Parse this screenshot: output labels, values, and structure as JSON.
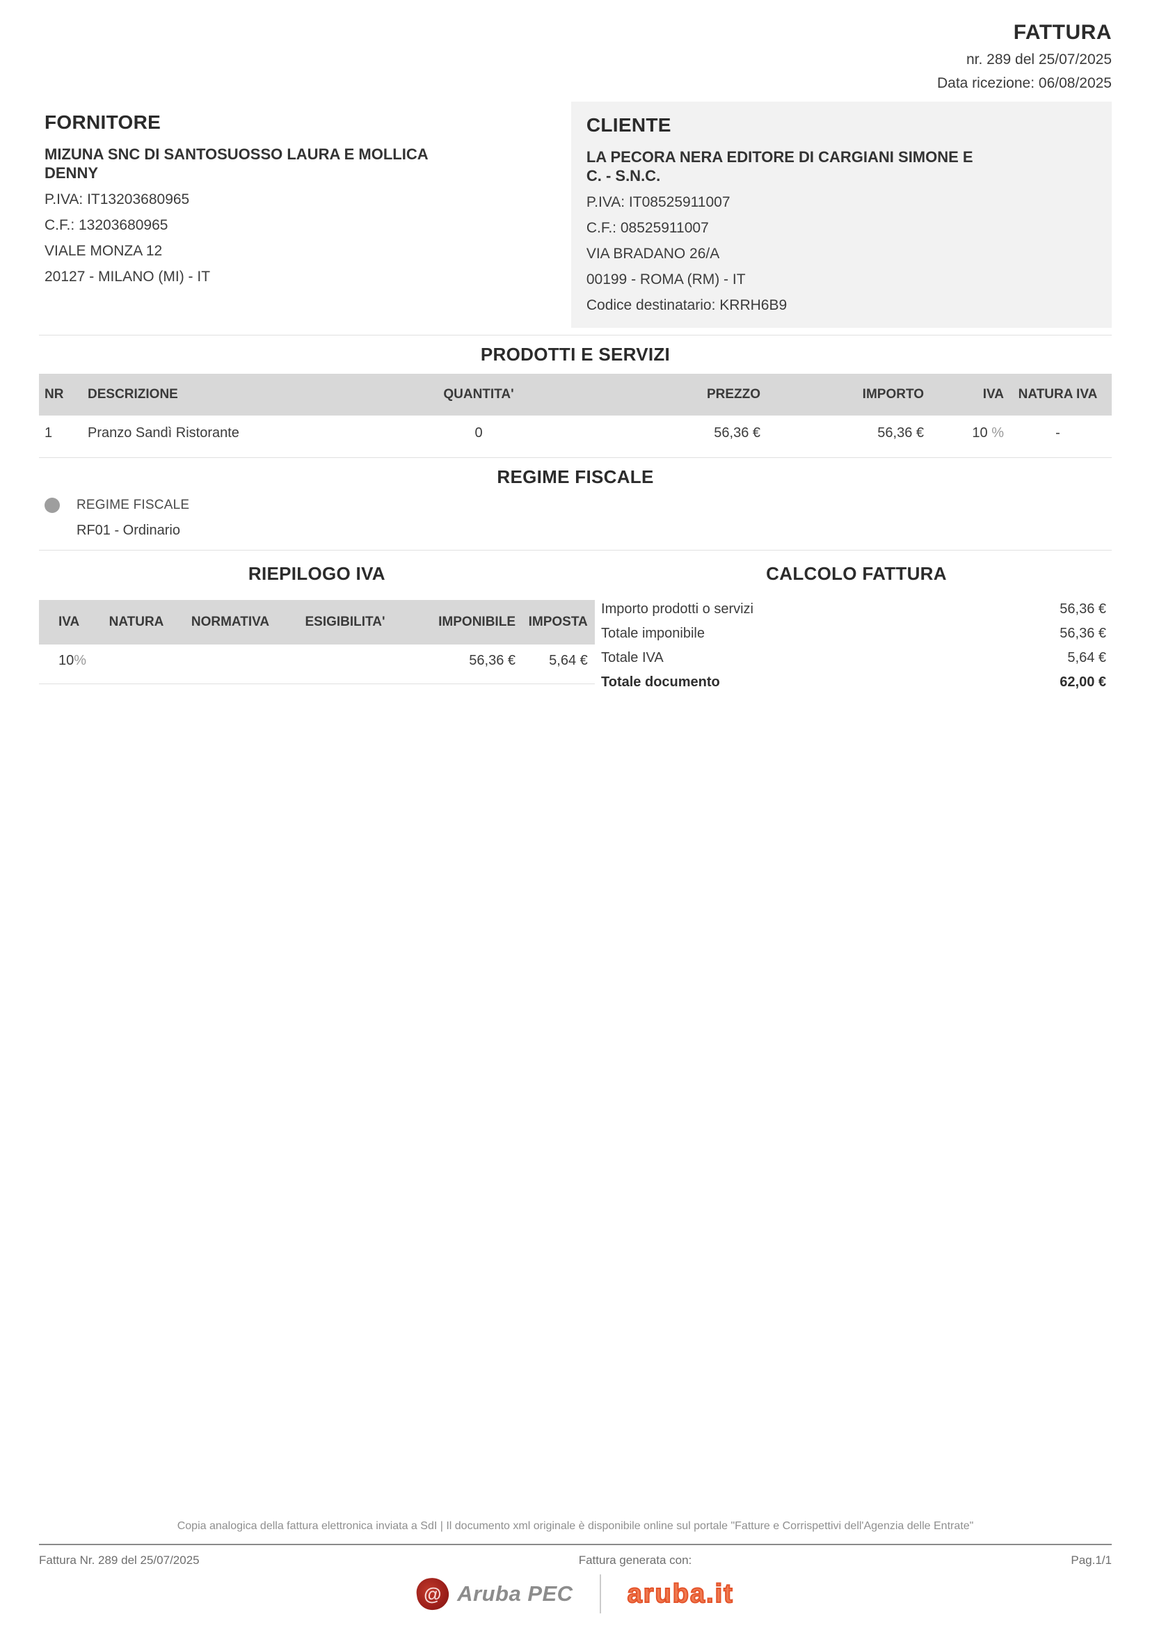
{
  "colors": {
    "table_header_bg": "#d8d8d8",
    "cliente_box_bg": "#f2f2f2",
    "text_dark": "#2b2b2b",
    "text_body": "#3c3c3c",
    "footer_gray": "#8f8f8f",
    "aruba_seal_red": "#9c1f1a",
    "aruba_pec_gray": "#8c8c8c",
    "aruba_it_orange": "#e4532a",
    "bullet_gray": "#9e9e9e"
  },
  "header": {
    "title": "FATTURA",
    "number_line": "nr. 289 del 25/07/2025",
    "reception_line": "Data ricezione: 06/08/2025"
  },
  "fornitore": {
    "heading": "FORNITORE",
    "name": "MIZUNA SNC DI SANTOSUOSSO LAURA E MOLLICA DENNY",
    "piva": "P.IVA: IT13203680965",
    "cf": "C.F.: 13203680965",
    "address": "VIALE MONZA 12",
    "city": "20127 - MILANO (MI) - IT"
  },
  "cliente": {
    "heading": "CLIENTE",
    "name": "LA PECORA NERA EDITORE DI CARGIANI SIMONE E C. - S.N.C.",
    "piva": "P.IVA: IT08525911007",
    "cf": "C.F.: 08525911007",
    "address": "VIA BRADANO 26/A",
    "city": "00199 - ROMA (RM) - IT",
    "codice_destinatario": "Codice destinatario: KRRH6B9"
  },
  "products": {
    "section_title": "PRODOTTI E SERVIZI",
    "columns": [
      "NR",
      "DESCRIZIONE",
      "QUANTITA'",
      "PREZZO",
      "IMPORTO",
      "IVA",
      "NATURA IVA"
    ],
    "rows": [
      {
        "nr": "1",
        "descrizione": "Pranzo Sandì Ristorante",
        "quantita": "0",
        "prezzo": "56,36 €",
        "importo": "56,36 €",
        "iva_value": "10 ",
        "iva_unit": "%",
        "natura_iva": "-"
      }
    ]
  },
  "regime_fiscale": {
    "section_title": "REGIME FISCALE",
    "label": "REGIME FISCALE",
    "value": "RF01 - Ordinario"
  },
  "riepilogo_iva": {
    "section_title": "RIEPILOGO IVA",
    "columns": [
      "IVA",
      "NATURA",
      "NORMATIVA",
      "ESIGIBILITA'",
      "IMPONIBILE",
      "IMPOSTA"
    ],
    "rows": [
      {
        "iva_value": "10",
        "iva_unit": "%",
        "natura": "",
        "normativa": "",
        "esigibilita": "",
        "imponibile": "56,36 €",
        "imposta": "5,64 €"
      }
    ]
  },
  "calcolo_fattura": {
    "section_title": "CALCOLO FATTURA",
    "rows": [
      {
        "label": "Importo prodotti o servizi",
        "value": "56,36 €"
      },
      {
        "label": "Totale imponibile",
        "value": "56,36 €"
      },
      {
        "label": "Totale IVA",
        "value": "5,64 €"
      },
      {
        "label": "Totale documento",
        "value": "62,00 €"
      }
    ]
  },
  "footer": {
    "note": "Copia analogica della fattura elettronica inviata a SdI | Il documento xml originale è disponibile online sul portale \"Fatture e Corrispettivi dell'Agenzia delle Entrate\"",
    "left": "Fattura Nr. 289 del 25/07/2025",
    "center": "Fattura generata con:",
    "right": "Pag.1/1",
    "seal_glyph": "@",
    "logo_arubapec": "Aruba PEC",
    "logo_arubait": "aruba.it"
  }
}
